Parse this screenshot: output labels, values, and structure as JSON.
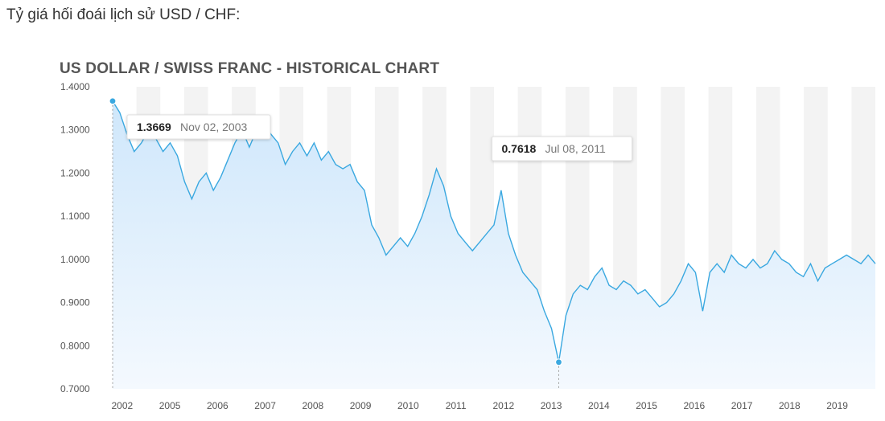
{
  "page": {
    "intro_text": "Tỷ giá hối đoái lịch sử USD / CHF:"
  },
  "chart_data": {
    "type": "area",
    "title": "US DOLLAR / SWISS FRANC - HISTORICAL CHART",
    "xlabel": "",
    "ylabel": "",
    "ylim": [
      0.7,
      1.4
    ],
    "yticks": [
      "1.4000",
      "1.3000",
      "1.2000",
      "1.1000",
      "1.0000",
      "0.9000",
      "0.8000",
      "0.7000"
    ],
    "xticks": [
      "2002",
      "2005",
      "2006",
      "2007",
      "2008",
      "2009",
      "2010",
      "2011",
      "2012",
      "2013",
      "2014",
      "2015",
      "2016",
      "2017",
      "2018",
      "2019"
    ],
    "grid": "alternating vertical bands",
    "series_color": "#3aa8e0",
    "fill_color": "#dcefff",
    "series": [
      {
        "name": "",
        "values": [
          1.3669,
          1.34,
          1.29,
          1.25,
          1.27,
          1.3,
          1.28,
          1.25,
          1.27,
          1.24,
          1.18,
          1.14,
          1.18,
          1.2,
          1.16,
          1.19,
          1.23,
          1.27,
          1.3,
          1.26,
          1.3,
          1.32,
          1.29,
          1.27,
          1.22,
          1.25,
          1.27,
          1.24,
          1.27,
          1.23,
          1.25,
          1.22,
          1.21,
          1.22,
          1.18,
          1.16,
          1.08,
          1.05,
          1.01,
          1.03,
          1.05,
          1.03,
          1.06,
          1.1,
          1.15,
          1.21,
          1.17,
          1.1,
          1.06,
          1.04,
          1.02,
          1.04,
          1.06,
          1.08,
          1.16,
          1.06,
          1.01,
          0.97,
          0.95,
          0.93,
          0.88,
          0.84,
          0.7618,
          0.87,
          0.92,
          0.94,
          0.93,
          0.96,
          0.98,
          0.94,
          0.93,
          0.95,
          0.94,
          0.92,
          0.93,
          0.91,
          0.89,
          0.9,
          0.92,
          0.95,
          0.99,
          0.97,
          0.88,
          0.97,
          0.99,
          0.97,
          1.01,
          0.99,
          0.98,
          1.0,
          0.98,
          0.99,
          1.02,
          1.0,
          0.99,
          0.97,
          0.96,
          0.99,
          0.95,
          0.98,
          0.99,
          1.0,
          1.01,
          1.0,
          0.99,
          1.01,
          0.99
        ]
      }
    ],
    "tooltips": [
      {
        "value": "1.3669",
        "date": "Nov 02, 2003",
        "index": 0
      },
      {
        "value": "0.7618",
        "date": "Jul 08, 2011",
        "index": 62
      }
    ]
  }
}
